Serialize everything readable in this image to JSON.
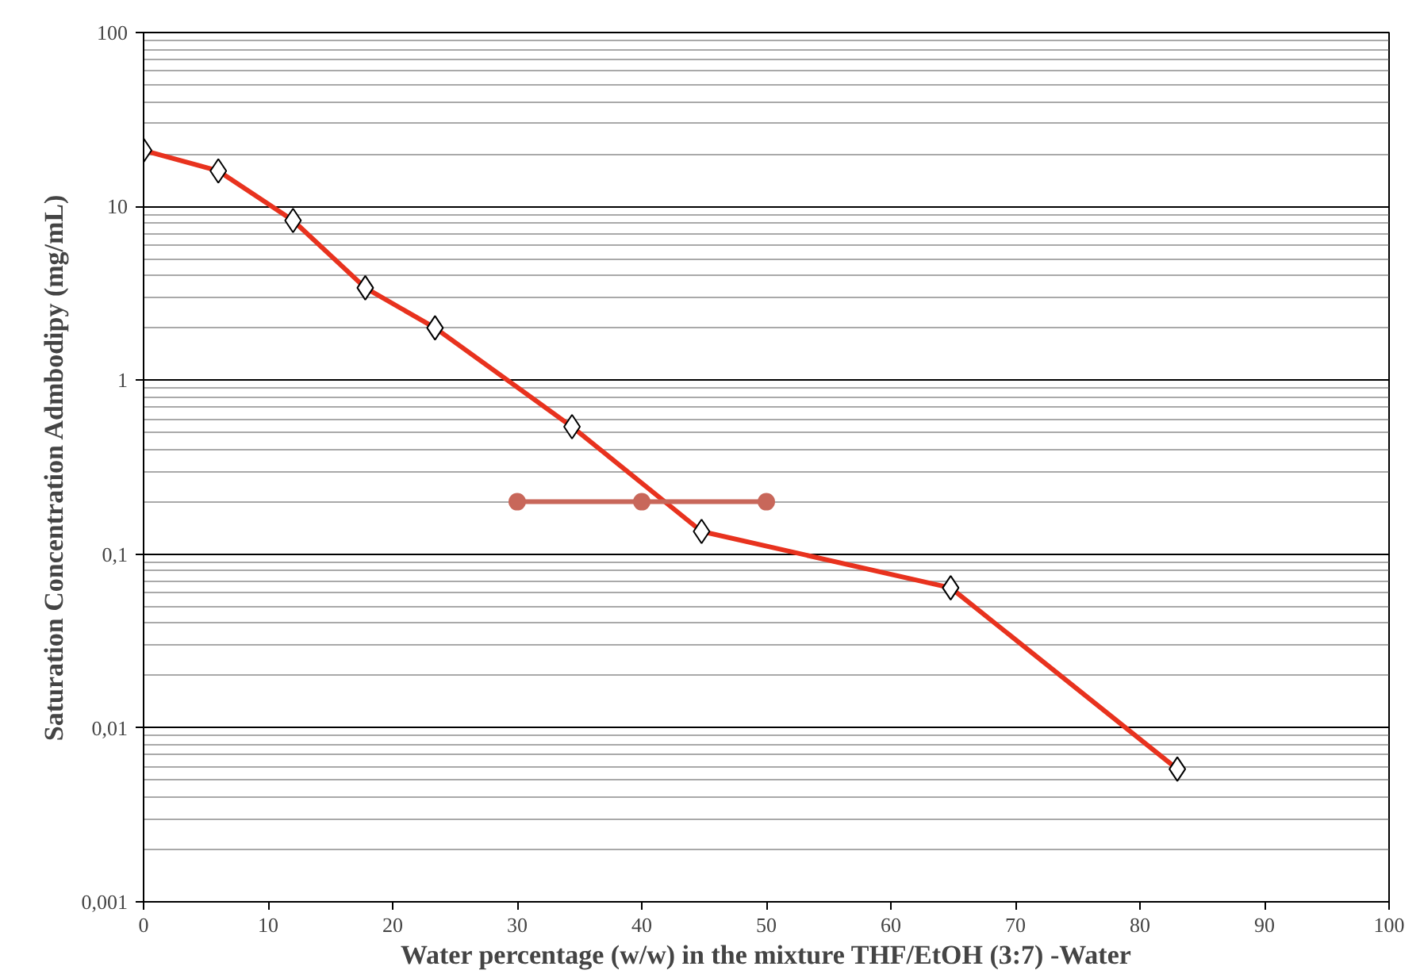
{
  "chart_data": {
    "type": "line",
    "xlabel": "Water percentage (w/w) in the mixture THF/EtOH (3:7) -Water",
    "ylabel": "Saturation Concentration Admbodipy (mg/mL)",
    "series": [
      {
        "color": "#e8321e",
        "marker": "diamond",
        "x": [
          0,
          6,
          12,
          17.8,
          23.4,
          34.4,
          44.8,
          64.8,
          83
        ],
        "values": [
          21,
          16,
          8.3,
          3.4,
          2.0,
          0.54,
          0.135,
          0.064,
          0.0058
        ]
      },
      {
        "color": "#c8675a",
        "marker": "circle",
        "x": [
          30,
          40,
          50
        ],
        "values": [
          0.2,
          0.2,
          0.2
        ]
      }
    ],
    "xlim": [
      0,
      100
    ],
    "xticks": [
      0,
      10,
      20,
      30,
      40,
      50,
      60,
      70,
      80,
      90,
      100
    ],
    "ylim": [
      0.001,
      100
    ],
    "yticks": [
      {
        "value": 0.001,
        "label": "0,001"
      },
      {
        "value": 0.01,
        "label": "0,01"
      },
      {
        "value": 0.1,
        "label": "0,1"
      },
      1,
      10,
      100
    ],
    "log": "y",
    "grid": "y",
    "line_style": "solid"
  }
}
